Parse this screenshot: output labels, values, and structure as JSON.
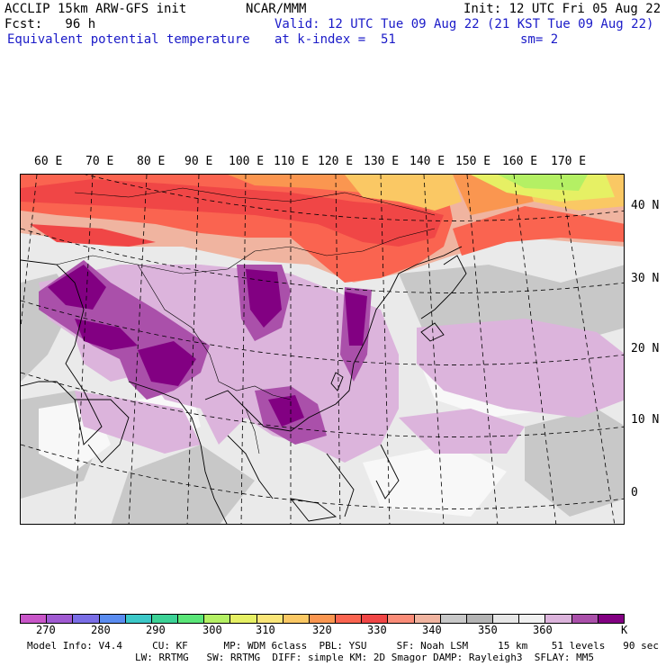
{
  "header": {
    "model": "ACCLIP 15km ARW-GFS init",
    "fcst": "Fcst:   96 h",
    "center": "NCAR/MMM",
    "init": "Init: 12 UTC Fri 05 Aug 22",
    "valid": "Valid: 12 UTC Tue 09 Aug 22 (21 KST Tue 09 Aug 22)",
    "field": "Equivalent potential temperature",
    "level": "at k-index =  51",
    "smooth": "sm= 2"
  },
  "lon_labels": [
    "60 E",
    "70 E",
    "80 E",
    "90 E",
    "100 E",
    "110 E",
    "120 E",
    "130 E",
    "140 E",
    "150 E",
    "160 E",
    "170 E"
  ],
  "lat_labels": [
    "40 N",
    "30 N",
    "20 N",
    "10 N",
    "0"
  ],
  "colorbar": {
    "colors": [
      "#c855c8",
      "#a05ad2",
      "#7a6ee6",
      "#5a8cf0",
      "#3cc8c8",
      "#3cd296",
      "#5ae678",
      "#b4f064",
      "#e6f064",
      "#fae678",
      "#fac864",
      "#fa9650",
      "#fa6450",
      "#f04646",
      "#fa8c78",
      "#f0b4a0",
      "#c8c8c8",
      "#b4b4b4",
      "#e6e6e6",
      "#f0f0f0",
      "#dcb4dc",
      "#aa50aa",
      "#820082"
    ],
    "labels": [
      "270",
      "280",
      "290",
      "300",
      "310",
      "320",
      "330",
      "340",
      "350",
      "360"
    ],
    "unit": "K"
  },
  "model_info": {
    "line1": "Model Info: V4.4     CU: KF      MP: WDM 6class  PBL: YSU     SF: Noah LSM     15 km    51 levels   90 sec",
    "line2": "LW: RRTMG   SW: RRTMG  DIFF: simple KM: 2D Smagor DAMP: Rayleigh3  SFLAY: MM5"
  }
}
